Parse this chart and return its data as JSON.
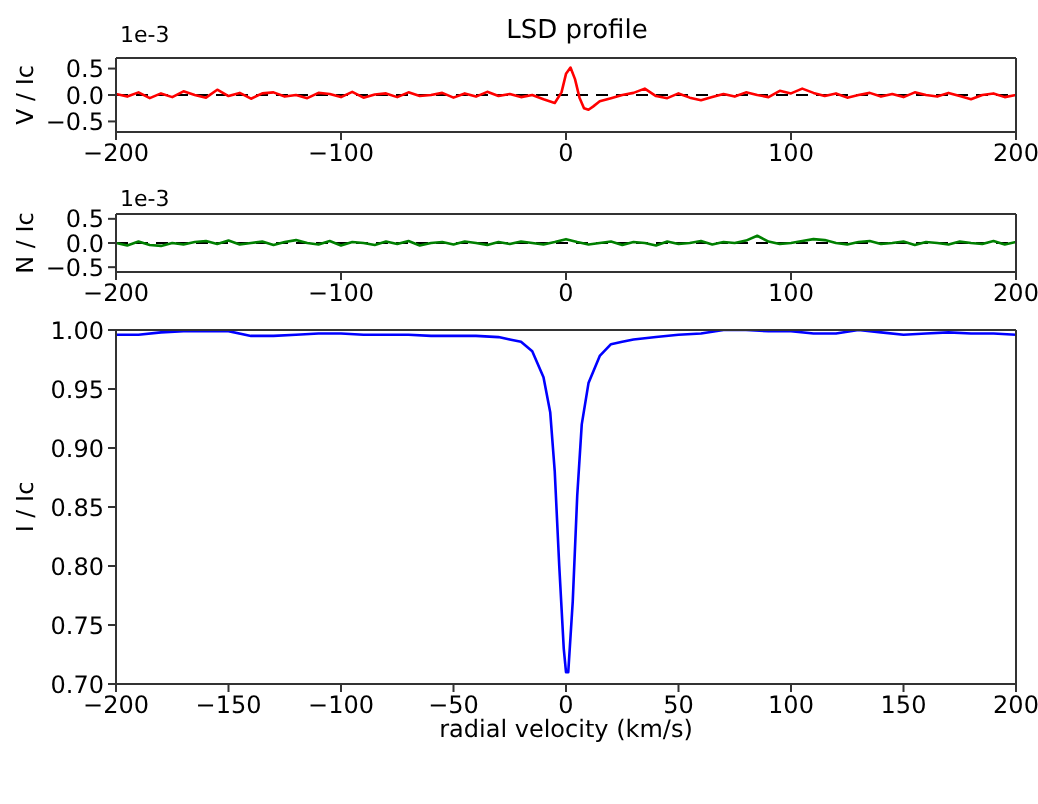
{
  "chart_data": [
    {
      "type": "line",
      "title": "LSD profile",
      "ylabel": "V / Ic",
      "annotations": [
        "1e-3"
      ],
      "x": [
        -200,
        -195,
        -190,
        -185,
        -180,
        -175,
        -170,
        -165,
        -160,
        -155,
        -150,
        -145,
        -140,
        -135,
        -130,
        -125,
        -120,
        -115,
        -110,
        -105,
        -100,
        -95,
        -90,
        -85,
        -80,
        -75,
        -70,
        -65,
        -60,
        -55,
        -50,
        -45,
        -40,
        -35,
        -30,
        -25,
        -20,
        -15,
        -10,
        -5,
        -2,
        0,
        2,
        4,
        6,
        8,
        10,
        12,
        15,
        20,
        25,
        30,
        35,
        40,
        45,
        50,
        55,
        60,
        65,
        70,
        75,
        80,
        85,
        90,
        95,
        100,
        105,
        110,
        115,
        120,
        125,
        130,
        135,
        140,
        145,
        150,
        155,
        160,
        165,
        170,
        175,
        180,
        185,
        190,
        195,
        200
      ],
      "series": [
        {
          "color": "#ff0000",
          "values": [
            0.02,
            -0.03,
            0.05,
            -0.06,
            0.03,
            -0.04,
            0.07,
            0.0,
            -0.05,
            0.1,
            -0.02,
            0.04,
            -0.07,
            0.03,
            0.05,
            -0.03,
            0.0,
            -0.06,
            0.04,
            0.02,
            -0.04,
            0.06,
            -0.05,
            0.01,
            0.03,
            -0.04,
            0.05,
            -0.02,
            0.0,
            0.04,
            -0.05,
            0.03,
            -0.03,
            0.06,
            -0.02,
            0.02,
            -0.04,
            0.0,
            -0.08,
            -0.15,
            0.05,
            0.4,
            0.52,
            0.3,
            -0.05,
            -0.25,
            -0.28,
            -0.22,
            -0.12,
            -0.06,
            0.0,
            0.04,
            0.12,
            -0.02,
            -0.06,
            0.03,
            -0.05,
            -0.1,
            -0.04,
            0.02,
            -0.03,
            0.05,
            0.0,
            -0.04,
            0.08,
            0.03,
            0.12,
            0.04,
            -0.02,
            0.03,
            -0.05,
            0.0,
            0.04,
            -0.03,
            0.02,
            -0.04,
            0.05,
            0.0,
            -0.03,
            0.04,
            -0.02,
            -0.08,
            0.0,
            0.03,
            -0.04,
            0.0
          ]
        }
      ],
      "xlim": [
        -200,
        200
      ],
      "xticks": [
        -200,
        -100,
        0,
        100,
        200
      ],
      "ylim": [
        -0.7,
        0.7
      ],
      "yticks": [
        {
          "value": -0.5,
          "label": "−0.5"
        },
        {
          "value": 0,
          "label": "0.0"
        },
        {
          "value": 0.5,
          "label": "0.5"
        }
      ],
      "ref_lines": [
        {
          "axis": "y",
          "value": 0,
          "color": "#000000",
          "line_style": "dashed"
        }
      ]
    },
    {
      "type": "line",
      "ylabel": "N / Ic",
      "annotations": [
        "1e-3"
      ],
      "x": [
        -200,
        -195,
        -190,
        -185,
        -180,
        -175,
        -170,
        -165,
        -160,
        -155,
        -150,
        -145,
        -140,
        -135,
        -130,
        -125,
        -120,
        -115,
        -110,
        -105,
        -100,
        -95,
        -90,
        -85,
        -80,
        -75,
        -70,
        -65,
        -60,
        -55,
        -50,
        -45,
        -40,
        -35,
        -30,
        -25,
        -20,
        -15,
        -10,
        -5,
        0,
        5,
        10,
        15,
        20,
        25,
        30,
        35,
        40,
        45,
        50,
        55,
        60,
        65,
        70,
        75,
        80,
        85,
        90,
        95,
        100,
        105,
        110,
        115,
        120,
        125,
        130,
        135,
        140,
        145,
        150,
        155,
        160,
        165,
        170,
        175,
        180,
        185,
        190,
        195,
        200
      ],
      "series": [
        {
          "color": "#008000",
          "values": [
            0.0,
            -0.05,
            0.03,
            -0.04,
            -0.06,
            0.0,
            -0.03,
            0.02,
            0.04,
            -0.02,
            0.05,
            -0.03,
            0.0,
            0.03,
            -0.04,
            0.02,
            0.06,
            0.0,
            -0.03,
            0.04,
            -0.05,
            0.02,
            0.0,
            -0.04,
            0.03,
            -0.02,
            0.04,
            -0.05,
            0.0,
            0.02,
            -0.03,
            0.03,
            0.0,
            -0.04,
            0.02,
            -0.02,
            0.03,
            0.0,
            -0.03,
            0.02,
            0.08,
            0.02,
            -0.03,
            0.0,
            0.03,
            -0.04,
            0.02,
            0.0,
            -0.05,
            0.03,
            -0.02,
            0.0,
            0.04,
            -0.03,
            0.02,
            0.0,
            0.05,
            0.15,
            0.03,
            -0.02,
            0.0,
            0.04,
            0.08,
            0.06,
            0.0,
            -0.03,
            0.02,
            0.04,
            -0.02,
            0.0,
            0.03,
            -0.04,
            0.02,
            0.0,
            -0.03,
            0.03,
            0.0,
            -0.02,
            0.04,
            -0.03,
            0.02
          ]
        }
      ],
      "xlim": [
        -200,
        200
      ],
      "xticks": [
        -200,
        -100,
        0,
        100,
        200
      ],
      "ylim": [
        -0.6,
        0.6
      ],
      "yticks": [
        {
          "value": -0.5,
          "label": "−0.5"
        },
        {
          "value": 0,
          "label": "0.0"
        },
        {
          "value": 0.5,
          "label": "0.5"
        }
      ],
      "ref_lines": [
        {
          "axis": "y",
          "value": 0,
          "color": "#000000",
          "line_style": "dashed"
        }
      ]
    },
    {
      "type": "line",
      "xlabel": "radial velocity (km/s)",
      "ylabel": "I / Ic",
      "x": [
        -200,
        -190,
        -180,
        -170,
        -160,
        -150,
        -140,
        -130,
        -120,
        -110,
        -100,
        -90,
        -80,
        -70,
        -60,
        -50,
        -40,
        -30,
        -25,
        -20,
        -15,
        -10,
        -7,
        -5,
        -3,
        -1,
        0,
        1,
        3,
        5,
        7,
        10,
        15,
        20,
        25,
        30,
        40,
        50,
        60,
        70,
        80,
        90,
        100,
        110,
        120,
        130,
        140,
        150,
        160,
        170,
        180,
        190,
        200
      ],
      "series": [
        {
          "color": "#0000ff",
          "values": [
            0.996,
            0.996,
            0.998,
            0.999,
            0.999,
            0.999,
            0.995,
            0.995,
            0.996,
            0.997,
            0.997,
            0.996,
            0.996,
            0.996,
            0.995,
            0.995,
            0.995,
            0.994,
            0.992,
            0.99,
            0.982,
            0.96,
            0.93,
            0.88,
            0.8,
            0.73,
            0.71,
            0.71,
            0.77,
            0.86,
            0.92,
            0.955,
            0.978,
            0.988,
            0.99,
            0.992,
            0.994,
            0.996,
            0.997,
            1.0,
            1.0,
            0.999,
            0.999,
            0.997,
            0.997,
            1.0,
            0.998,
            0.996,
            0.997,
            0.998,
            0.997,
            0.997,
            0.996
          ]
        }
      ],
      "xlim": [
        -200,
        200
      ],
      "xticks": [
        -200,
        -150,
        -100,
        -50,
        0,
        50,
        100,
        150,
        200
      ],
      "ylim": [
        0.7,
        1.0
      ],
      "yticks": [
        {
          "value": 0.7,
          "label": "0.70"
        },
        {
          "value": 0.75,
          "label": "0.75"
        },
        {
          "value": 0.8,
          "label": "0.80"
        },
        {
          "value": 0.85,
          "label": "0.85"
        },
        {
          "value": 0.9,
          "label": "0.90"
        },
        {
          "value": 0.95,
          "label": "0.95"
        },
        {
          "value": 1.0,
          "label": "1.00"
        }
      ]
    }
  ]
}
